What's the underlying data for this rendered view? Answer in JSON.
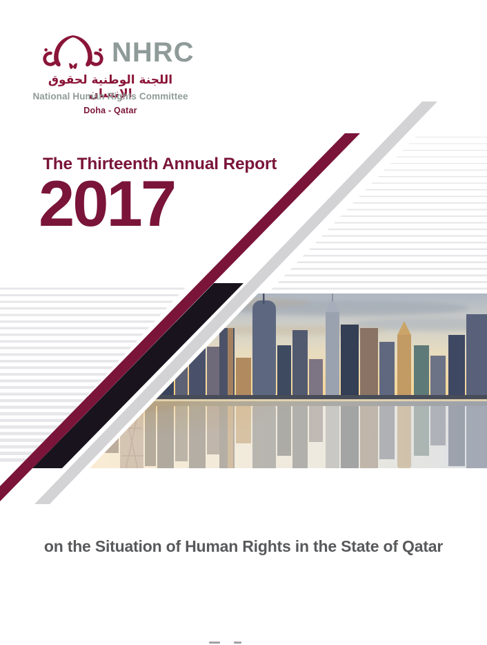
{
  "logo": {
    "acronym": "NHRC",
    "arabic_name": "اللجنة الوطنية لحقوق الإنسان",
    "english_name": "National Human Rights Committee",
    "location": "Doha - Qatar",
    "emblem_icon": "nhrc-two-figures-emblem"
  },
  "cover": {
    "report_title": "The Thirteenth Annual Report",
    "year": "2017",
    "subtitle": "on the Situation of Human Rights in the State of Qatar",
    "image_description": "doha-skyline-sunset-reflection"
  },
  "colors": {
    "logo_maroon": "#8A1538",
    "title_maroon": "#7A1439",
    "logo_gray": "#8F9B99",
    "subtitle_gray": "#58595B",
    "diagonal_black": "#18131D",
    "diagonal_gray": "#D3D3D6",
    "stripe_gray": "#E7E7EA"
  }
}
